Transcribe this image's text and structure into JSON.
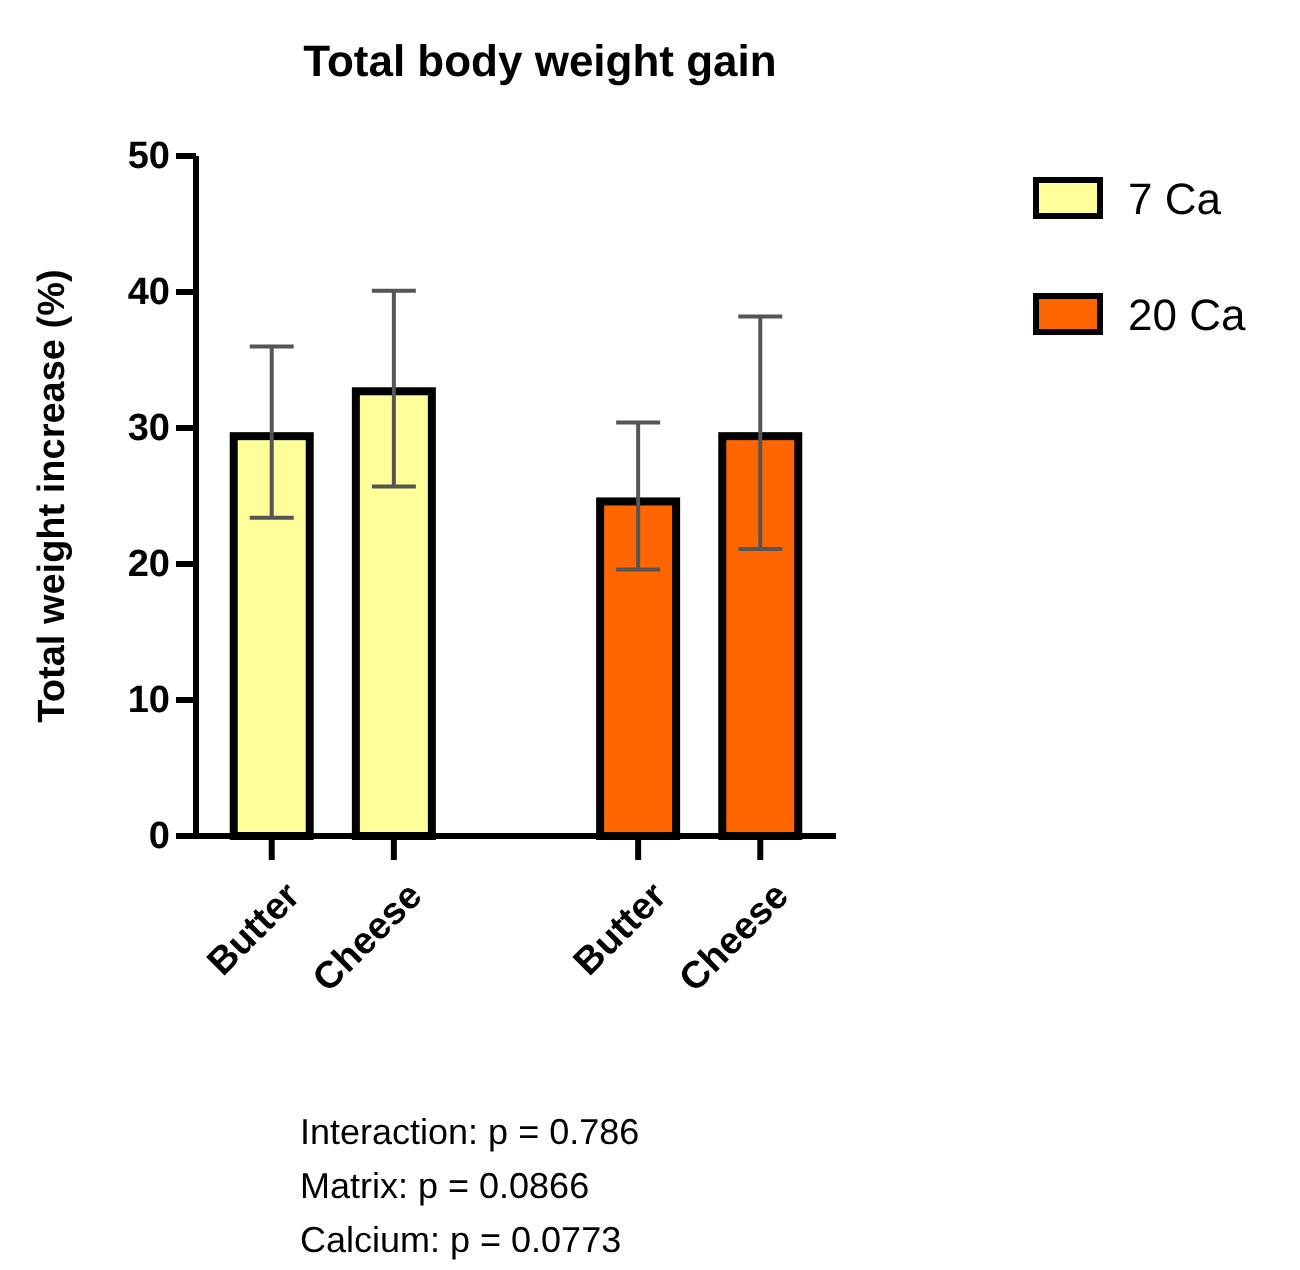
{
  "chart_data": {
    "type": "bar",
    "title": "Total body weight gain",
    "ylabel": "Total weight increase (%)",
    "categories": [
      "Butter",
      "Cheese",
      null,
      "Butter",
      "Cheese"
    ],
    "series": [
      {
        "name": "7 Ca",
        "color": "#ffff99",
        "values": [
          29.4,
          32.7,
          null,
          null,
          null
        ],
        "errors": [
          [
            23.4,
            36.0
          ],
          [
            25.7,
            40.1
          ],
          null,
          null,
          null
        ]
      },
      {
        "name": "20 Ca",
        "color": "#ff6600",
        "values": [
          null,
          null,
          null,
          24.6,
          29.4
        ],
        "errors": [
          null,
          null,
          null,
          [
            19.6,
            30.4
          ],
          [
            21.1,
            38.2
          ]
        ]
      }
    ],
    "ylim": [
      0,
      50
    ],
    "yticks": [
      0,
      10,
      20,
      30,
      40,
      50
    ],
    "grid": false,
    "legend": "top right",
    "annotations": [
      "Interaction: p = 0.786",
      "Matrix: p = 0.0866",
      "Calcium: p = 0.0773"
    ]
  }
}
